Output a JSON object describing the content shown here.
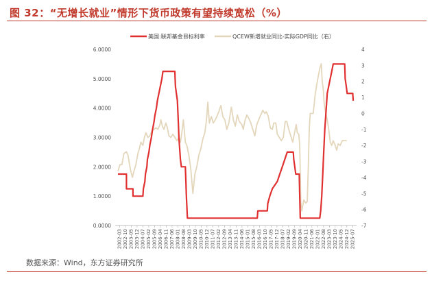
{
  "figure": {
    "title": "图 32：“无增长就业”情形下货币政策有望持续宽松（%）",
    "source": "数据来源：Wind，东方证券研究所"
  },
  "chart_data": {
    "type": "line",
    "legend_placement": "top",
    "grid": false,
    "colors": {
      "left": "#e03030",
      "right": "#e3d6bb"
    },
    "x_ticks": [
      "2002-03",
      "2002-10",
      "2003-05",
      "2003-12",
      "2004-07",
      "2005-02",
      "2005-09",
      "2006-04",
      "2006-11",
      "2007-06",
      "2008-01",
      "2008-08",
      "2009-03",
      "2009-10",
      "2010-05",
      "2010-12",
      "2011-07",
      "2012-02",
      "2012-09",
      "2013-04",
      "2013-11",
      "2014-06",
      "2015-01",
      "2015-08",
      "2016-03",
      "2016-10",
      "2017-05",
      "2017-12",
      "2018-07",
      "2019-02",
      "2019-09",
      "2020-04",
      "2020-11",
      "2021-06",
      "2022-01",
      "2022-08",
      "2023-03",
      "2023-10",
      "2024-05",
      "2024-12",
      "2025-07"
    ],
    "y_left": {
      "ticks": [
        "0.0000",
        "1.0000",
        "2.0000",
        "3.0000",
        "4.0000",
        "5.0000",
        "6.0000"
      ],
      "lim": [
        0,
        6
      ]
    },
    "y_right": {
      "ticks": [
        "-7",
        "-6",
        "-5",
        "-4",
        "-3",
        "-2",
        "-1",
        "0",
        "1",
        "2",
        "3",
        "4"
      ],
      "lim": [
        -7,
        4
      ]
    },
    "series": [
      {
        "name": "美国:联邦基金目标利率",
        "axis": "left",
        "points": [
          [
            2002.0,
            1.75
          ],
          [
            2002.85,
            1.75
          ],
          [
            2002.85,
            1.25
          ],
          [
            2003.5,
            1.25
          ],
          [
            2003.5,
            1.0
          ],
          [
            2004.5,
            1.0
          ],
          [
            2004.55,
            1.25
          ],
          [
            2004.7,
            1.5
          ],
          [
            2004.75,
            1.75
          ],
          [
            2004.9,
            2.0
          ],
          [
            2004.95,
            2.25
          ],
          [
            2005.1,
            2.5
          ],
          [
            2005.2,
            2.75
          ],
          [
            2005.35,
            3.0
          ],
          [
            2005.45,
            3.25
          ],
          [
            2005.6,
            3.5
          ],
          [
            2005.7,
            3.75
          ],
          [
            2005.85,
            4.0
          ],
          [
            2005.95,
            4.25
          ],
          [
            2006.1,
            4.5
          ],
          [
            2006.25,
            4.75
          ],
          [
            2006.4,
            5.0
          ],
          [
            2006.5,
            5.25
          ],
          [
            2007.7,
            5.25
          ],
          [
            2007.75,
            4.75
          ],
          [
            2007.85,
            4.5
          ],
          [
            2007.95,
            4.25
          ],
          [
            2008.05,
            3.5
          ],
          [
            2008.1,
            3.0
          ],
          [
            2008.25,
            2.25
          ],
          [
            2008.35,
            2.0
          ],
          [
            2008.75,
            2.0
          ],
          [
            2008.8,
            1.5
          ],
          [
            2008.85,
            1.0
          ],
          [
            2008.95,
            0.25
          ],
          [
            2015.95,
            0.25
          ],
          [
            2016.0,
            0.5
          ],
          [
            2016.95,
            0.5
          ],
          [
            2017.0,
            0.75
          ],
          [
            2017.2,
            1.0
          ],
          [
            2017.45,
            1.25
          ],
          [
            2017.95,
            1.5
          ],
          [
            2018.2,
            1.75
          ],
          [
            2018.45,
            2.0
          ],
          [
            2018.7,
            2.25
          ],
          [
            2018.95,
            2.5
          ],
          [
            2019.55,
            2.5
          ],
          [
            2019.6,
            2.25
          ],
          [
            2019.7,
            2.0
          ],
          [
            2019.8,
            1.75
          ],
          [
            2020.15,
            1.75
          ],
          [
            2020.2,
            1.0
          ],
          [
            2020.25,
            0.25
          ],
          [
            2022.2,
            0.25
          ],
          [
            2022.3,
            0.5
          ],
          [
            2022.4,
            1.0
          ],
          [
            2022.5,
            1.75
          ],
          [
            2022.6,
            2.5
          ],
          [
            2022.7,
            3.25
          ],
          [
            2022.85,
            4.0
          ],
          [
            2022.95,
            4.5
          ],
          [
            2023.1,
            4.75
          ],
          [
            2023.25,
            5.0
          ],
          [
            2023.4,
            5.25
          ],
          [
            2023.55,
            5.5
          ],
          [
            2024.7,
            5.5
          ],
          [
            2024.75,
            5.0
          ],
          [
            2024.85,
            4.75
          ],
          [
            2024.95,
            4.5
          ],
          [
            2025.5,
            4.5
          ],
          [
            2025.55,
            4.25
          ]
        ]
      },
      {
        "name": "QCEW新增就业同比-实际GDP同比（右）",
        "axis": "right",
        "points": [
          [
            2002.0,
            -3.6
          ],
          [
            2002.2,
            -3.2
          ],
          [
            2002.4,
            -3.2
          ],
          [
            2002.6,
            -2.5
          ],
          [
            2002.85,
            -2.4
          ],
          [
            2003.0,
            -2.6
          ],
          [
            2003.25,
            -3.5
          ],
          [
            2003.45,
            -4.0
          ],
          [
            2003.6,
            -3.6
          ],
          [
            2003.8,
            -3.2
          ],
          [
            2004.0,
            -2.5
          ],
          [
            2004.15,
            -2.2
          ],
          [
            2004.3,
            -1.8
          ],
          [
            2004.5,
            -2.0
          ],
          [
            2004.65,
            -1.5
          ],
          [
            2004.8,
            -1.2
          ],
          [
            2005.0,
            -1.5
          ],
          [
            2005.2,
            -1.4
          ],
          [
            2005.4,
            -1.1
          ],
          [
            2005.6,
            -1.0
          ],
          [
            2005.8,
            -0.9
          ],
          [
            2006.0,
            -1.0
          ],
          [
            2006.2,
            -0.7
          ],
          [
            2006.3,
            -0.4
          ],
          [
            2006.45,
            -0.8
          ],
          [
            2006.6,
            -1.0
          ],
          [
            2006.8,
            -0.6
          ],
          [
            2006.95,
            -0.9
          ],
          [
            2007.1,
            -1.4
          ],
          [
            2007.3,
            -1.5
          ],
          [
            2007.5,
            -1.3
          ],
          [
            2007.7,
            -1.5
          ],
          [
            2007.9,
            -1.7
          ],
          [
            2008.1,
            -1.5
          ],
          [
            2008.25,
            -1.8
          ],
          [
            2008.4,
            -1.2
          ],
          [
            2008.55,
            -0.4
          ],
          [
            2008.75,
            -1.8
          ],
          [
            2008.9,
            -2.0
          ],
          [
            2009.1,
            -2.6
          ],
          [
            2009.3,
            -3.5
          ],
          [
            2009.5,
            -5.0
          ],
          [
            2009.7,
            -3.8
          ],
          [
            2009.9,
            -3.3
          ],
          [
            2010.1,
            -2.6
          ],
          [
            2010.3,
            -2.2
          ],
          [
            2010.5,
            -1.6
          ],
          [
            2010.7,
            -1.2
          ],
          [
            2010.85,
            -0.5
          ],
          [
            2011.0,
            0.7
          ],
          [
            2011.15,
            -0.6
          ],
          [
            2011.35,
            -0.2
          ],
          [
            2011.55,
            -0.6
          ],
          [
            2011.75,
            -0.4
          ],
          [
            2011.9,
            -0.2
          ],
          [
            2012.1,
            0.1
          ],
          [
            2012.3,
            0.5
          ],
          [
            2012.5,
            -0.2
          ],
          [
            2012.7,
            -0.4
          ],
          [
            2012.9,
            -1.0
          ],
          [
            2013.1,
            -0.6
          ],
          [
            2013.35,
            0.4
          ],
          [
            2013.55,
            -0.4
          ],
          [
            2013.75,
            -0.8
          ],
          [
            2013.95,
            -0.1
          ],
          [
            2014.15,
            -0.5
          ],
          [
            2014.4,
            -0.7
          ],
          [
            2014.55,
            -1.0
          ],
          [
            2014.7,
            -0.5
          ],
          [
            2014.9,
            -0.1
          ],
          [
            2015.1,
            -0.3
          ],
          [
            2015.3,
            -0.6
          ],
          [
            2015.5,
            -1.0
          ],
          [
            2015.7,
            -1.4
          ],
          [
            2015.9,
            -0.7
          ],
          [
            2016.15,
            -0.3
          ],
          [
            2016.3,
            -0.1
          ],
          [
            2016.5,
            0.2
          ],
          [
            2016.7,
            0.0
          ],
          [
            2016.85,
            0.1
          ],
          [
            2017.05,
            -0.2
          ],
          [
            2017.25,
            -0.9
          ],
          [
            2017.45,
            -1.0
          ],
          [
            2017.6,
            -0.6
          ],
          [
            2017.8,
            -0.6
          ],
          [
            2017.95,
            -1.3
          ],
          [
            2018.15,
            -1.5
          ],
          [
            2018.35,
            -1.7
          ],
          [
            2018.55,
            -1.5
          ],
          [
            2018.75,
            -0.5
          ],
          [
            2018.9,
            -0.5
          ],
          [
            2019.1,
            -1.0
          ],
          [
            2019.3,
            -1.4
          ],
          [
            2019.5,
            -1.8
          ],
          [
            2019.65,
            -1.3
          ],
          [
            2019.85,
            -0.7
          ],
          [
            2019.95,
            -1.2
          ],
          [
            2020.1,
            -1.3
          ],
          [
            2020.2,
            -2.0
          ],
          [
            2020.3,
            -5.5
          ],
          [
            2020.4,
            -6.1
          ],
          [
            2020.6,
            -5.4
          ],
          [
            2020.8,
            -5.6
          ],
          [
            2020.95,
            -5.5
          ],
          [
            2021.05,
            -3.5
          ],
          [
            2021.15,
            -1.0
          ],
          [
            2021.25,
            0.0
          ],
          [
            2021.4,
            0.0
          ],
          [
            2021.55,
            0.0
          ],
          [
            2021.75,
            1.2
          ],
          [
            2021.9,
            1.8
          ],
          [
            2022.05,
            2.3
          ],
          [
            2022.2,
            2.8
          ],
          [
            2022.35,
            3.1
          ],
          [
            2022.45,
            2.0
          ],
          [
            2022.55,
            1.5
          ],
          [
            2022.65,
            0.6
          ],
          [
            2022.8,
            0.0
          ],
          [
            2022.95,
            -0.4
          ],
          [
            2023.1,
            -1.0
          ],
          [
            2023.25,
            -1.8
          ],
          [
            2023.4,
            -2.0
          ],
          [
            2023.55,
            -1.7
          ],
          [
            2023.75,
            -2.0
          ],
          [
            2023.9,
            -2.3
          ],
          [
            2024.05,
            -1.9
          ],
          [
            2024.25,
            -2.0
          ],
          [
            2024.45,
            -1.7
          ],
          [
            2024.65,
            -1.7
          ],
          [
            2024.9,
            -1.7
          ]
        ]
      }
    ]
  }
}
